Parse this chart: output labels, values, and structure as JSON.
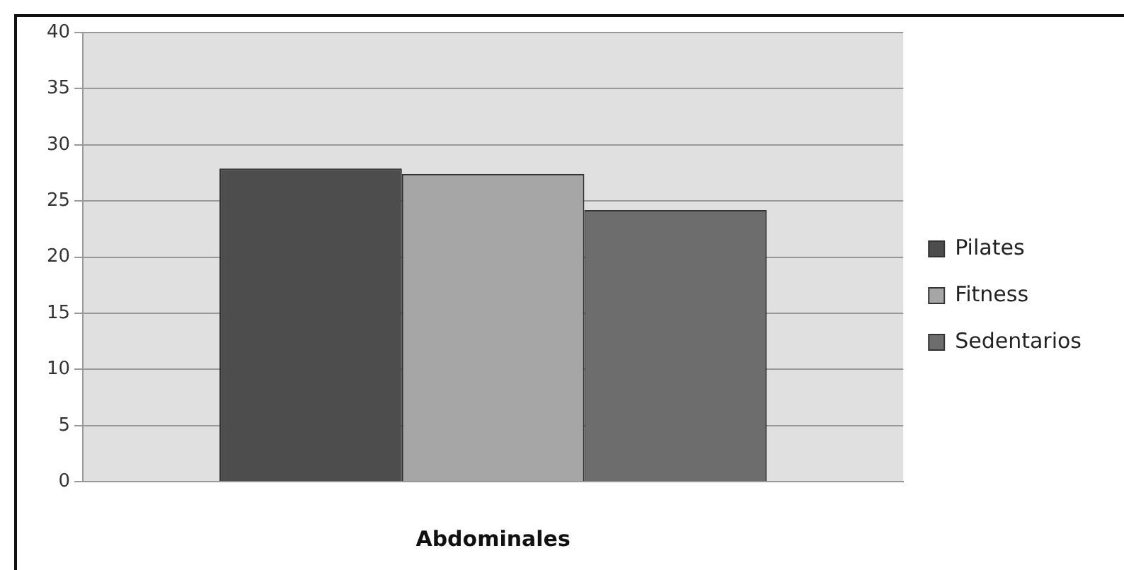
{
  "chart_data": {
    "type": "bar",
    "xlabel": "Abdominales",
    "categories": [
      null
    ],
    "series": [
      {
        "name": "Pilates",
        "color": "#4d4d4d",
        "values": [
          27.9
        ]
      },
      {
        "name": "Fitness",
        "color": "#a6a6a6",
        "values": [
          27.4
        ]
      },
      {
        "name": "Sedentarios",
        "color": "#6d6d6d",
        "values": [
          24.2
        ]
      }
    ],
    "ylim": [
      0,
      40
    ],
    "yticks": [
      0,
      5,
      10,
      15,
      20,
      25,
      30,
      35,
      40
    ],
    "grid": "y",
    "legend": "right"
  }
}
